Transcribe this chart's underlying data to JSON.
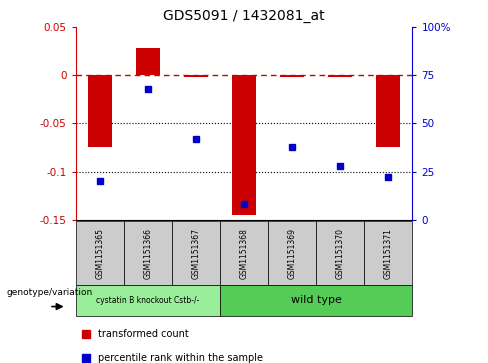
{
  "title": "GDS5091 / 1432081_at",
  "categories": [
    "GSM1151365",
    "GSM1151366",
    "GSM1151367",
    "GSM1151368",
    "GSM1151369",
    "GSM1151370",
    "GSM1151371"
  ],
  "red_values": [
    -0.075,
    0.028,
    -0.002,
    -0.145,
    -0.002,
    -0.002,
    -0.075
  ],
  "blue_values": [
    20,
    68,
    42,
    8,
    38,
    28,
    22
  ],
  "ylim_left": [
    -0.15,
    0.05
  ],
  "ylim_right": [
    0,
    100
  ],
  "yticks_left": [
    -0.15,
    -0.1,
    -0.05,
    0,
    0.05
  ],
  "yticks_right": [
    0,
    25,
    50,
    75,
    100
  ],
  "red_color": "#cc0000",
  "blue_color": "#0000cc",
  "bg_color": "#ffffff",
  "grey_color": "#cccccc",
  "group1_label": "cystatin B knockout Cstb-/-",
  "group2_label": "wild type",
  "group1_color": "#99ee99",
  "group2_color": "#55cc55",
  "group1_count": 3,
  "group2_count": 4,
  "legend_red_label": "transformed count",
  "legend_blue_label": "percentile rank within the sample",
  "genotype_label": "genotype/variation",
  "bar_width": 0.5,
  "title_fontsize": 10,
  "tick_fontsize": 7.5,
  "label_fontsize": 6
}
